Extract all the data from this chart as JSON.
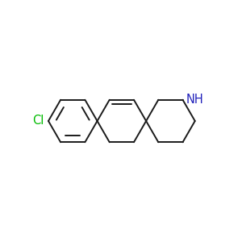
{
  "background_color": "#ffffff",
  "bond_color": "#1a1a1a",
  "cl_color": "#00bb00",
  "nh_color": "#2222bb",
  "line_width": 1.4,
  "font_size": 10.5,
  "figsize": [
    3.0,
    3.0
  ],
  "dpi": 100,
  "cl_label": "Cl",
  "nh_label": "NH",
  "ring_r": 0.72,
  "xlim": [
    -3.8,
    3.2
  ],
  "ylim": [
    -1.5,
    1.5
  ]
}
